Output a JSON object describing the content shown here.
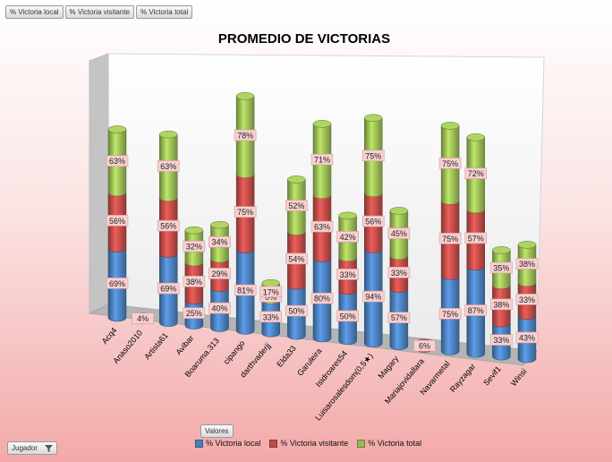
{
  "field_buttons": [
    "% Victoria local",
    "% Victoria visitante",
    "% Victoria total"
  ],
  "valores_label": "Valores",
  "jugador_label": "Jugador",
  "legend": [
    {
      "label": "% Victoria local",
      "color": "#4a7ebb"
    },
    {
      "label": "% Victoria visitante",
      "color": "#be4b48"
    },
    {
      "label": "% Victoria total",
      "color": "#98b954"
    }
  ],
  "chart_data": {
    "type": "bar",
    "stacked": true,
    "three_d": true,
    "title": "PROMEDIO DE VICTORIAS",
    "categories": [
      "Acq4",
      "Anaso2010",
      "Artista61",
      "Avibar",
      "Boaruma.313",
      "cipango",
      "darthvaderjj",
      "Elda33",
      "Garuleira",
      "Isidroares54",
      "Luisarosalesdom(0,5★)",
      "Magary",
      "Mariajovidallara",
      "Navarmetal",
      "Rayzagar",
      "Sevif1",
      "Winsi"
    ],
    "series": [
      {
        "name": "% Victoria local",
        "color": "#4a7ebb",
        "values": [
          69,
          0,
          69,
          25,
          40,
          81,
          33,
          50,
          80,
          50,
          94,
          57,
          0,
          75,
          87,
          33,
          43
        ]
      },
      {
        "name": "% Victoria visitante",
        "color": "#be4b48",
        "values": [
          56,
          4,
          56,
          38,
          29,
          75,
          0,
          54,
          63,
          33,
          56,
          33,
          6,
          75,
          57,
          38,
          33
        ]
      },
      {
        "name": "% Victoria total",
        "color": "#98b954",
        "values": [
          63,
          0,
          63,
          32,
          34,
          78,
          17,
          52,
          71,
          42,
          75,
          45,
          0,
          75,
          72,
          35,
          38
        ]
      }
    ],
    "data_labels": [
      [
        "69%",
        "",
        "69%",
        "25%",
        "40%",
        "81%",
        "33%",
        "50%",
        "80%",
        "50%",
        "94%",
        "57%",
        "",
        "75%",
        "87%",
        "33%",
        "43%"
      ],
      [
        "56%",
        "4%",
        "56%",
        "38%",
        "29%",
        "75%",
        "0%",
        "54%",
        "63%",
        "33%",
        "56%",
        "33%",
        "6%",
        "75%",
        "57%",
        "38%",
        "33%"
      ],
      [
        "63%",
        "",
        "63%",
        "32%",
        "34%",
        "78%",
        "17%",
        "52%",
        "71%",
        "42%",
        "75%",
        "45%",
        "",
        "75%",
        "72%",
        "35%",
        "38%"
      ]
    ],
    "xlabel": "",
    "ylabel": "",
    "ylim": [
      0,
      250
    ],
    "grid": false,
    "legend_position": "bottom"
  }
}
